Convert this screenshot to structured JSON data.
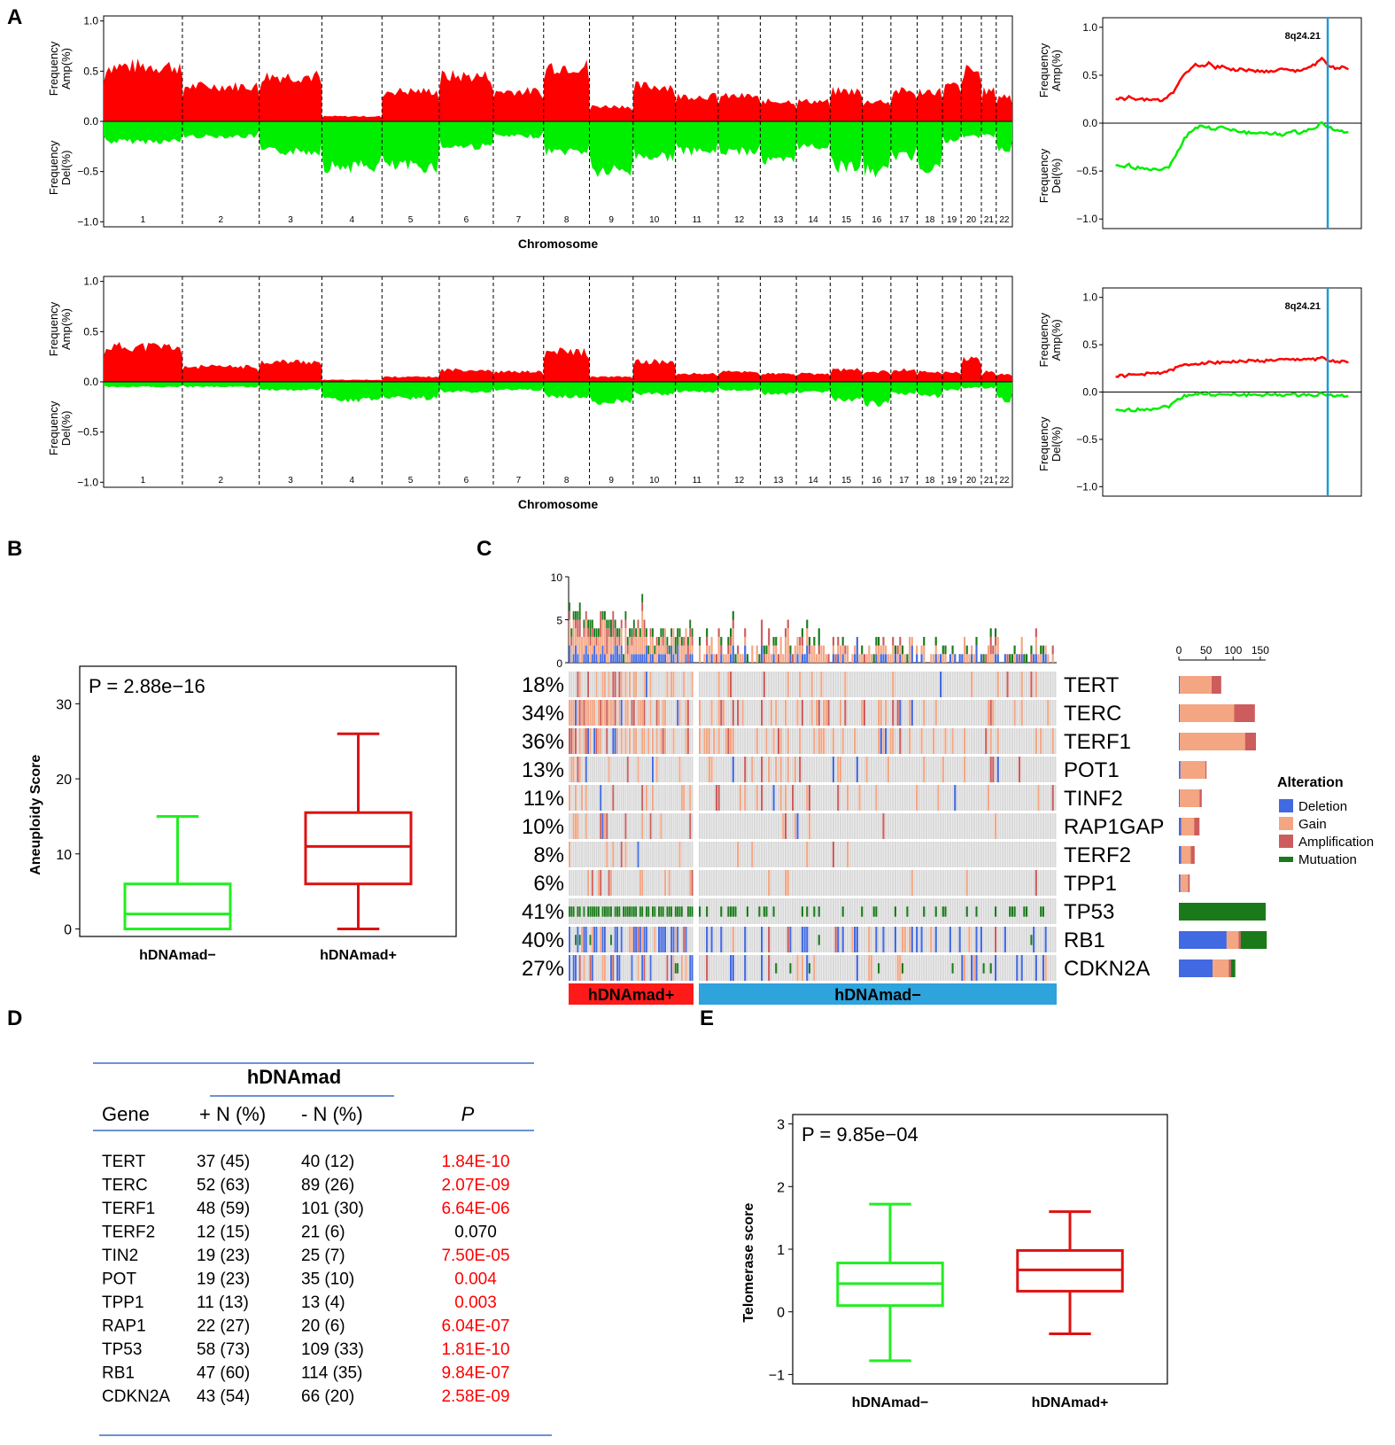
{
  "figure": {
    "panel_labels": [
      "A",
      "B",
      "C",
      "D",
      "E"
    ],
    "colors": {
      "amp": "#ff0000",
      "del": "#00ee00",
      "neg_group": "#22ee22",
      "pos_group": "#dd1111",
      "deletion": "#4169e1",
      "gain": "#f4a582",
      "amplification": "#cd5c5c",
      "mutation": "#1a7a1a",
      "empty": "#d8d8d8",
      "vline": "#1f9bd8",
      "pos_bar": "#ff1a1a",
      "neg_bar": "#2ea3dc",
      "pvalue_red": "#ff0000",
      "table_rule": "#3a6fc4"
    }
  },
  "chart_data": [
    {
      "id": "A-top-genome",
      "type": "area",
      "xlabel": "Chromosome",
      "ylabel_amp": "Frequency Amp(%)",
      "ylabel_del": "Frequency Del(%)",
      "yticks": [
        "1.0",
        "0.5",
        "0.0",
        "−0.5",
        "−1.0"
      ],
      "ylim": [
        -1,
        1
      ],
      "chromosomes": [
        "1",
        "2",
        "3",
        "4",
        "5",
        "6",
        "7",
        "8",
        "9",
        "10",
        "11",
        "12",
        "13",
        "14",
        "15",
        "16",
        "17",
        "18",
        "19",
        "20",
        "21",
        "22"
      ],
      "chrom_sizes": [
        249,
        243,
        198,
        190,
        181,
        171,
        159,
        145,
        138,
        134,
        135,
        133,
        114,
        107,
        102,
        90,
        83,
        80,
        59,
        64,
        47,
        51
      ],
      "amp_freq": [
        0.55,
        0.35,
        0.45,
        0.05,
        0.3,
        0.45,
        0.3,
        0.55,
        0.15,
        0.35,
        0.25,
        0.25,
        0.2,
        0.2,
        0.3,
        0.2,
        0.3,
        0.3,
        0.35,
        0.5,
        0.3,
        0.25
      ],
      "del_freq": [
        0.2,
        0.15,
        0.3,
        0.45,
        0.45,
        0.25,
        0.15,
        0.3,
        0.5,
        0.35,
        0.3,
        0.3,
        0.4,
        0.25,
        0.45,
        0.5,
        0.35,
        0.45,
        0.2,
        0.15,
        0.15,
        0.3
      ]
    },
    {
      "id": "A-top-8q",
      "type": "line",
      "annotation": "8q24.21",
      "ylabel_amp": "Frequency Amp(%)",
      "ylabel_del": "Frequency Del(%)",
      "yticks": [
        "1.0",
        "0.5",
        "0.0",
        "−0.5",
        "−1.0"
      ],
      "ylim": [
        -1,
        1
      ],
      "amp": [
        0.26,
        0.25,
        0.27,
        0.24,
        0.26,
        0.23,
        0.25,
        0.24,
        0.28,
        0.35,
        0.48,
        0.55,
        0.62,
        0.6,
        0.62,
        0.58,
        0.6,
        0.57,
        0.55,
        0.56,
        0.55,
        0.54,
        0.55,
        0.53,
        0.55,
        0.56,
        0.55,
        0.54,
        0.56,
        0.58,
        0.62,
        0.67,
        0.6,
        0.57,
        0.58,
        0.56
      ],
      "del": [
        -0.45,
        -0.46,
        -0.44,
        -0.47,
        -0.46,
        -0.48,
        -0.47,
        -0.49,
        -0.45,
        -0.35,
        -0.2,
        -0.1,
        -0.05,
        -0.03,
        -0.05,
        -0.06,
        -0.04,
        -0.07,
        -0.08,
        -0.09,
        -0.1,
        -0.11,
        -0.09,
        -0.12,
        -0.11,
        -0.12,
        -0.1,
        -0.09,
        -0.1,
        -0.07,
        -0.04,
        0.0,
        -0.04,
        -0.07,
        -0.09,
        -0.1
      ],
      "marker_fraction": 0.87
    },
    {
      "id": "A-bottom-genome",
      "type": "area",
      "xlabel": "Chromosome",
      "ylabel_amp": "Frequency Amp(%)",
      "ylabel_del": "Frequency Del(%)",
      "yticks": [
        "1.0",
        "0.5",
        "0.0",
        "−0.5",
        "−1.0"
      ],
      "ylim": [
        -1,
        1
      ],
      "chromosomes": [
        "1",
        "2",
        "3",
        "4",
        "5",
        "6",
        "7",
        "8",
        "9",
        "10",
        "11",
        "12",
        "13",
        "14",
        "15",
        "16",
        "17",
        "18",
        "19",
        "20",
        "21",
        "22"
      ],
      "chrom_sizes": [
        249,
        243,
        198,
        190,
        181,
        171,
        159,
        145,
        138,
        134,
        135,
        133,
        114,
        107,
        102,
        90,
        83,
        80,
        59,
        64,
        47,
        51
      ],
      "amp_freq": [
        0.35,
        0.15,
        0.2,
        0.02,
        0.05,
        0.12,
        0.1,
        0.3,
        0.05,
        0.2,
        0.08,
        0.1,
        0.08,
        0.08,
        0.12,
        0.1,
        0.12,
        0.1,
        0.1,
        0.22,
        0.1,
        0.08
      ],
      "del_freq": [
        0.05,
        0.05,
        0.08,
        0.18,
        0.16,
        0.1,
        0.08,
        0.15,
        0.2,
        0.12,
        0.1,
        0.08,
        0.12,
        0.1,
        0.18,
        0.22,
        0.12,
        0.14,
        0.08,
        0.06,
        0.06,
        0.18
      ]
    },
    {
      "id": "A-bottom-8q",
      "type": "line",
      "annotation": "8q24.21",
      "ylabel_amp": "Frequency Amp(%)",
      "ylabel_del": "Frequency Del(%)",
      "yticks": [
        "1.0",
        "0.5",
        "0.0",
        "−0.5",
        "−1.0"
      ],
      "ylim": [
        -1,
        1
      ],
      "amp": [
        0.17,
        0.17,
        0.18,
        0.18,
        0.19,
        0.19,
        0.2,
        0.21,
        0.22,
        0.25,
        0.28,
        0.29,
        0.3,
        0.31,
        0.31,
        0.31,
        0.32,
        0.32,
        0.32,
        0.32,
        0.33,
        0.33,
        0.33,
        0.33,
        0.34,
        0.34,
        0.34,
        0.34,
        0.35,
        0.35,
        0.35,
        0.36,
        0.33,
        0.32,
        0.32,
        0.31
      ],
      "del": [
        -0.2,
        -0.2,
        -0.19,
        -0.19,
        -0.18,
        -0.18,
        -0.17,
        -0.16,
        -0.15,
        -0.1,
        -0.05,
        -0.03,
        -0.02,
        -0.02,
        -0.02,
        -0.03,
        -0.03,
        -0.03,
        -0.03,
        -0.03,
        -0.03,
        -0.03,
        -0.03,
        -0.03,
        -0.03,
        -0.03,
        -0.03,
        -0.03,
        -0.03,
        -0.03,
        -0.03,
        -0.02,
        -0.03,
        -0.04,
        -0.04,
        -0.05
      ],
      "marker_fraction": 0.87
    },
    {
      "id": "B",
      "type": "boxplot",
      "ylabel": "Aneuploidy Score",
      "pvalue": "P = 2.88e−16",
      "ylim": [
        -1,
        35
      ],
      "yticks": [
        0,
        10,
        20,
        30
      ],
      "groups": [
        {
          "name": "hDNAmad−",
          "min": 0,
          "q1": 0,
          "median": 2,
          "q3": 6,
          "max": 15
        },
        {
          "name": "hDNAmad+",
          "min": 0,
          "q1": 6,
          "median": 11,
          "q3": 15.5,
          "max": 26
        }
      ]
    },
    {
      "id": "C-oncoprint",
      "type": "heatmap",
      "genes": [
        "TERT",
        "TERC",
        "TERF1",
        "POT1",
        "TINF2",
        "RAP1GAP",
        "TERF2",
        "TPP1",
        "TP53",
        "RB1",
        "CDKN2A"
      ],
      "percents": [
        "18%",
        "34%",
        "36%",
        "13%",
        "11%",
        "10%",
        "8%",
        "6%",
        "41%",
        "40%",
        "27%"
      ],
      "row_totals": [
        {
          "deletion": 2,
          "gain": 58,
          "amplification": 18,
          "mutation": 0
        },
        {
          "deletion": 2,
          "gain": 100,
          "amplification": 38,
          "mutation": 0
        },
        {
          "deletion": 2,
          "gain": 120,
          "amplification": 20,
          "mutation": 0
        },
        {
          "deletion": 3,
          "gain": 46,
          "amplification": 2,
          "mutation": 0
        },
        {
          "deletion": 2,
          "gain": 36,
          "amplification": 4,
          "mutation": 0
        },
        {
          "deletion": 4,
          "gain": 24,
          "amplification": 10,
          "mutation": 0
        },
        {
          "deletion": 4,
          "gain": 18,
          "amplification": 7,
          "mutation": 0
        },
        {
          "deletion": 3,
          "gain": 14,
          "amplification": 3,
          "mutation": 0
        },
        {
          "deletion": 0,
          "gain": 0,
          "amplification": 0,
          "mutation": 160
        },
        {
          "deletion": 88,
          "gain": 22,
          "amplification": 4,
          "mutation": 48
        },
        {
          "deletion": 62,
          "gain": 30,
          "amplification": 4,
          "mutation": 8
        }
      ],
      "right_axis_ticks": [
        "0",
        "50",
        "100",
        "150"
      ],
      "right_axis_max": 160,
      "top_axis_ticks": [
        "0",
        "5",
        "10"
      ],
      "top_max": 10,
      "legend_title": "Alteration",
      "legend": [
        "Deletion",
        "Gain",
        "Amplification",
        "Mutuation"
      ],
      "group_bars": [
        "hDNAmad+",
        "hDNAmad−"
      ]
    },
    {
      "id": "E",
      "type": "boxplot",
      "ylabel": "Telomerase score",
      "pvalue": "P = 9.85e−04",
      "ylim": [
        -1.15,
        3.15
      ],
      "yticks": [
        -1,
        0,
        1,
        2,
        3
      ],
      "groups": [
        {
          "name": "hDNAmad−",
          "min": -0.78,
          "q1": 0.1,
          "median": 0.45,
          "q3": 0.78,
          "max": 1.72
        },
        {
          "name": "hDNAmad+",
          "min": -0.35,
          "q1": 0.33,
          "median": 0.67,
          "q3": 0.98,
          "max": 1.6
        }
      ]
    }
  ],
  "table": {
    "group_header": "hDNAmad",
    "columns": [
      "Gene",
      "+ N (%)",
      "- N (%)",
      "P"
    ],
    "rows": [
      {
        "gene": "TERT",
        "pos": "37 (45)",
        "neg": "40 (12)",
        "p": "1.84E-10",
        "significant": true
      },
      {
        "gene": "TERC",
        "pos": "52 (63)",
        "neg": "89 (26)",
        "p": "2.07E-09",
        "significant": true
      },
      {
        "gene": "TERF1",
        "pos": "48  (59)",
        "neg": "101 (30)",
        "p": "6.64E-06",
        "significant": true
      },
      {
        "gene": "TERF2",
        "pos": "12  (15)",
        "neg": "21    (6)",
        "p": "0.070",
        "significant": false
      },
      {
        "gene": "TIN2",
        "pos": "19 (23)",
        "neg": "25    (7)",
        "p": "7.50E-05",
        "significant": true
      },
      {
        "gene": "POT",
        "pos": "19 (23)",
        "neg": "35  (10)",
        "p": "0.004",
        "significant": true
      },
      {
        "gene": "TPP1",
        "pos": "11 (13)",
        "neg": "13    (4)",
        "p": "0.003",
        "significant": true
      },
      {
        "gene": "RAP1",
        "pos": "22 (27)",
        "neg": "20    (6)",
        "p": "6.04E-07",
        "significant": true
      },
      {
        "gene": "TP53",
        "pos": "58 (73)",
        "neg": "109 (33)",
        "p": "1.81E-10",
        "significant": true
      },
      {
        "gene": "RB1",
        "pos": "47 (60)",
        "neg": "114 (35)",
        "p": "9.84E-07",
        "significant": true
      },
      {
        "gene": "CDKN2A",
        "pos": "43 (54)",
        "neg": "66 (20)",
        "p": "2.58E-09",
        "significant": true
      }
    ]
  }
}
